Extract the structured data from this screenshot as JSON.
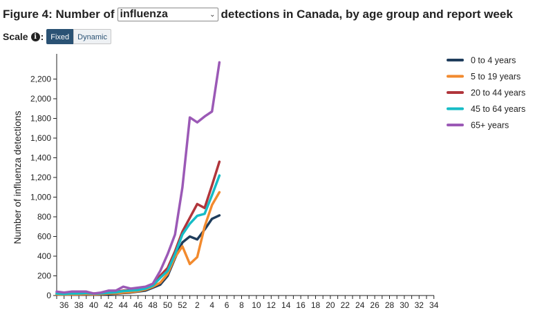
{
  "header": {
    "title_prefix": "Figure 4: Number of",
    "select_value": "influenza",
    "title_suffix": "detections in Canada, by age group and report week"
  },
  "scale": {
    "label": "Scale",
    "info_icon": "info-circle-icon",
    "fixed_label": "Fixed",
    "dynamic_label": "Dynamic"
  },
  "colors": {
    "0 to 4 years": "#1f3d5c",
    "5 to 19 years": "#f28a2e",
    "20 to 44 years": "#b0353b",
    "45 to 64 years": "#16bcc6",
    "65+ years": "#9b59b6"
  },
  "chart_data": {
    "type": "line",
    "title": "",
    "xlabel": "",
    "ylabel": "Number of influenza detections",
    "ylim": [
      0,
      2400
    ],
    "yticks": [
      0,
      200,
      400,
      600,
      800,
      1000,
      1200,
      1400,
      1600,
      1800,
      2000,
      2200
    ],
    "ytick_labels": [
      "0",
      "200",
      "400",
      "600",
      "800",
      "1,000",
      "1,200",
      "1,400",
      "1,600",
      "1,800",
      "2,000",
      "2,200"
    ],
    "x": [
      35,
      36,
      37,
      38,
      39,
      40,
      41,
      42,
      43,
      44,
      45,
      46,
      47,
      48,
      49,
      50,
      51,
      52,
      1,
      2,
      3,
      4,
      5
    ],
    "x_axis_weeks": [
      35,
      36,
      37,
      38,
      39,
      40,
      41,
      42,
      43,
      44,
      45,
      46,
      47,
      48,
      49,
      50,
      51,
      52,
      1,
      2,
      3,
      4,
      5,
      6,
      7,
      8,
      9,
      10,
      11,
      12,
      13,
      14,
      15,
      16,
      17,
      18,
      19,
      20,
      21,
      22,
      23,
      24,
      25,
      26,
      27,
      28,
      29,
      30,
      31,
      32,
      33,
      34
    ],
    "xtick_labels": [
      "36",
      "38",
      "40",
      "42",
      "44",
      "46",
      "48",
      "50",
      "52",
      "2",
      "4",
      "6",
      "8",
      "10",
      "12",
      "14",
      "16",
      "18",
      "20",
      "22",
      "24",
      "26",
      "28",
      "30",
      "32",
      "34"
    ],
    "grid": false,
    "legend_position": "right",
    "series": [
      {
        "name": "0 to 4 years",
        "values": [
          10,
          8,
          10,
          10,
          12,
          10,
          12,
          15,
          18,
          25,
          30,
          40,
          50,
          80,
          110,
          200,
          380,
          540,
          600,
          570,
          670,
          780,
          815
        ]
      },
      {
        "name": "5 to 19 years",
        "values": [
          12,
          10,
          12,
          12,
          15,
          12,
          15,
          20,
          22,
          30,
          35,
          45,
          60,
          90,
          130,
          220,
          390,
          500,
          320,
          390,
          700,
          920,
          1050
        ]
      },
      {
        "name": "20 to 44 years",
        "values": [
          25,
          20,
          25,
          25,
          30,
          20,
          25,
          30,
          35,
          50,
          55,
          60,
          75,
          110,
          200,
          280,
          450,
          650,
          790,
          930,
          890,
          1120,
          1360
        ]
      },
      {
        "name": "45 to 64 years",
        "values": [
          20,
          15,
          20,
          20,
          25,
          18,
          22,
          28,
          32,
          45,
          50,
          55,
          70,
          100,
          180,
          250,
          420,
          620,
          730,
          810,
          830,
          1020,
          1220
        ]
      },
      {
        "name": "65+ years",
        "values": [
          40,
          30,
          40,
          40,
          40,
          20,
          30,
          50,
          50,
          90,
          70,
          80,
          90,
          120,
          250,
          420,
          620,
          1100,
          1810,
          1760,
          1820,
          1870,
          2370
        ]
      }
    ]
  }
}
